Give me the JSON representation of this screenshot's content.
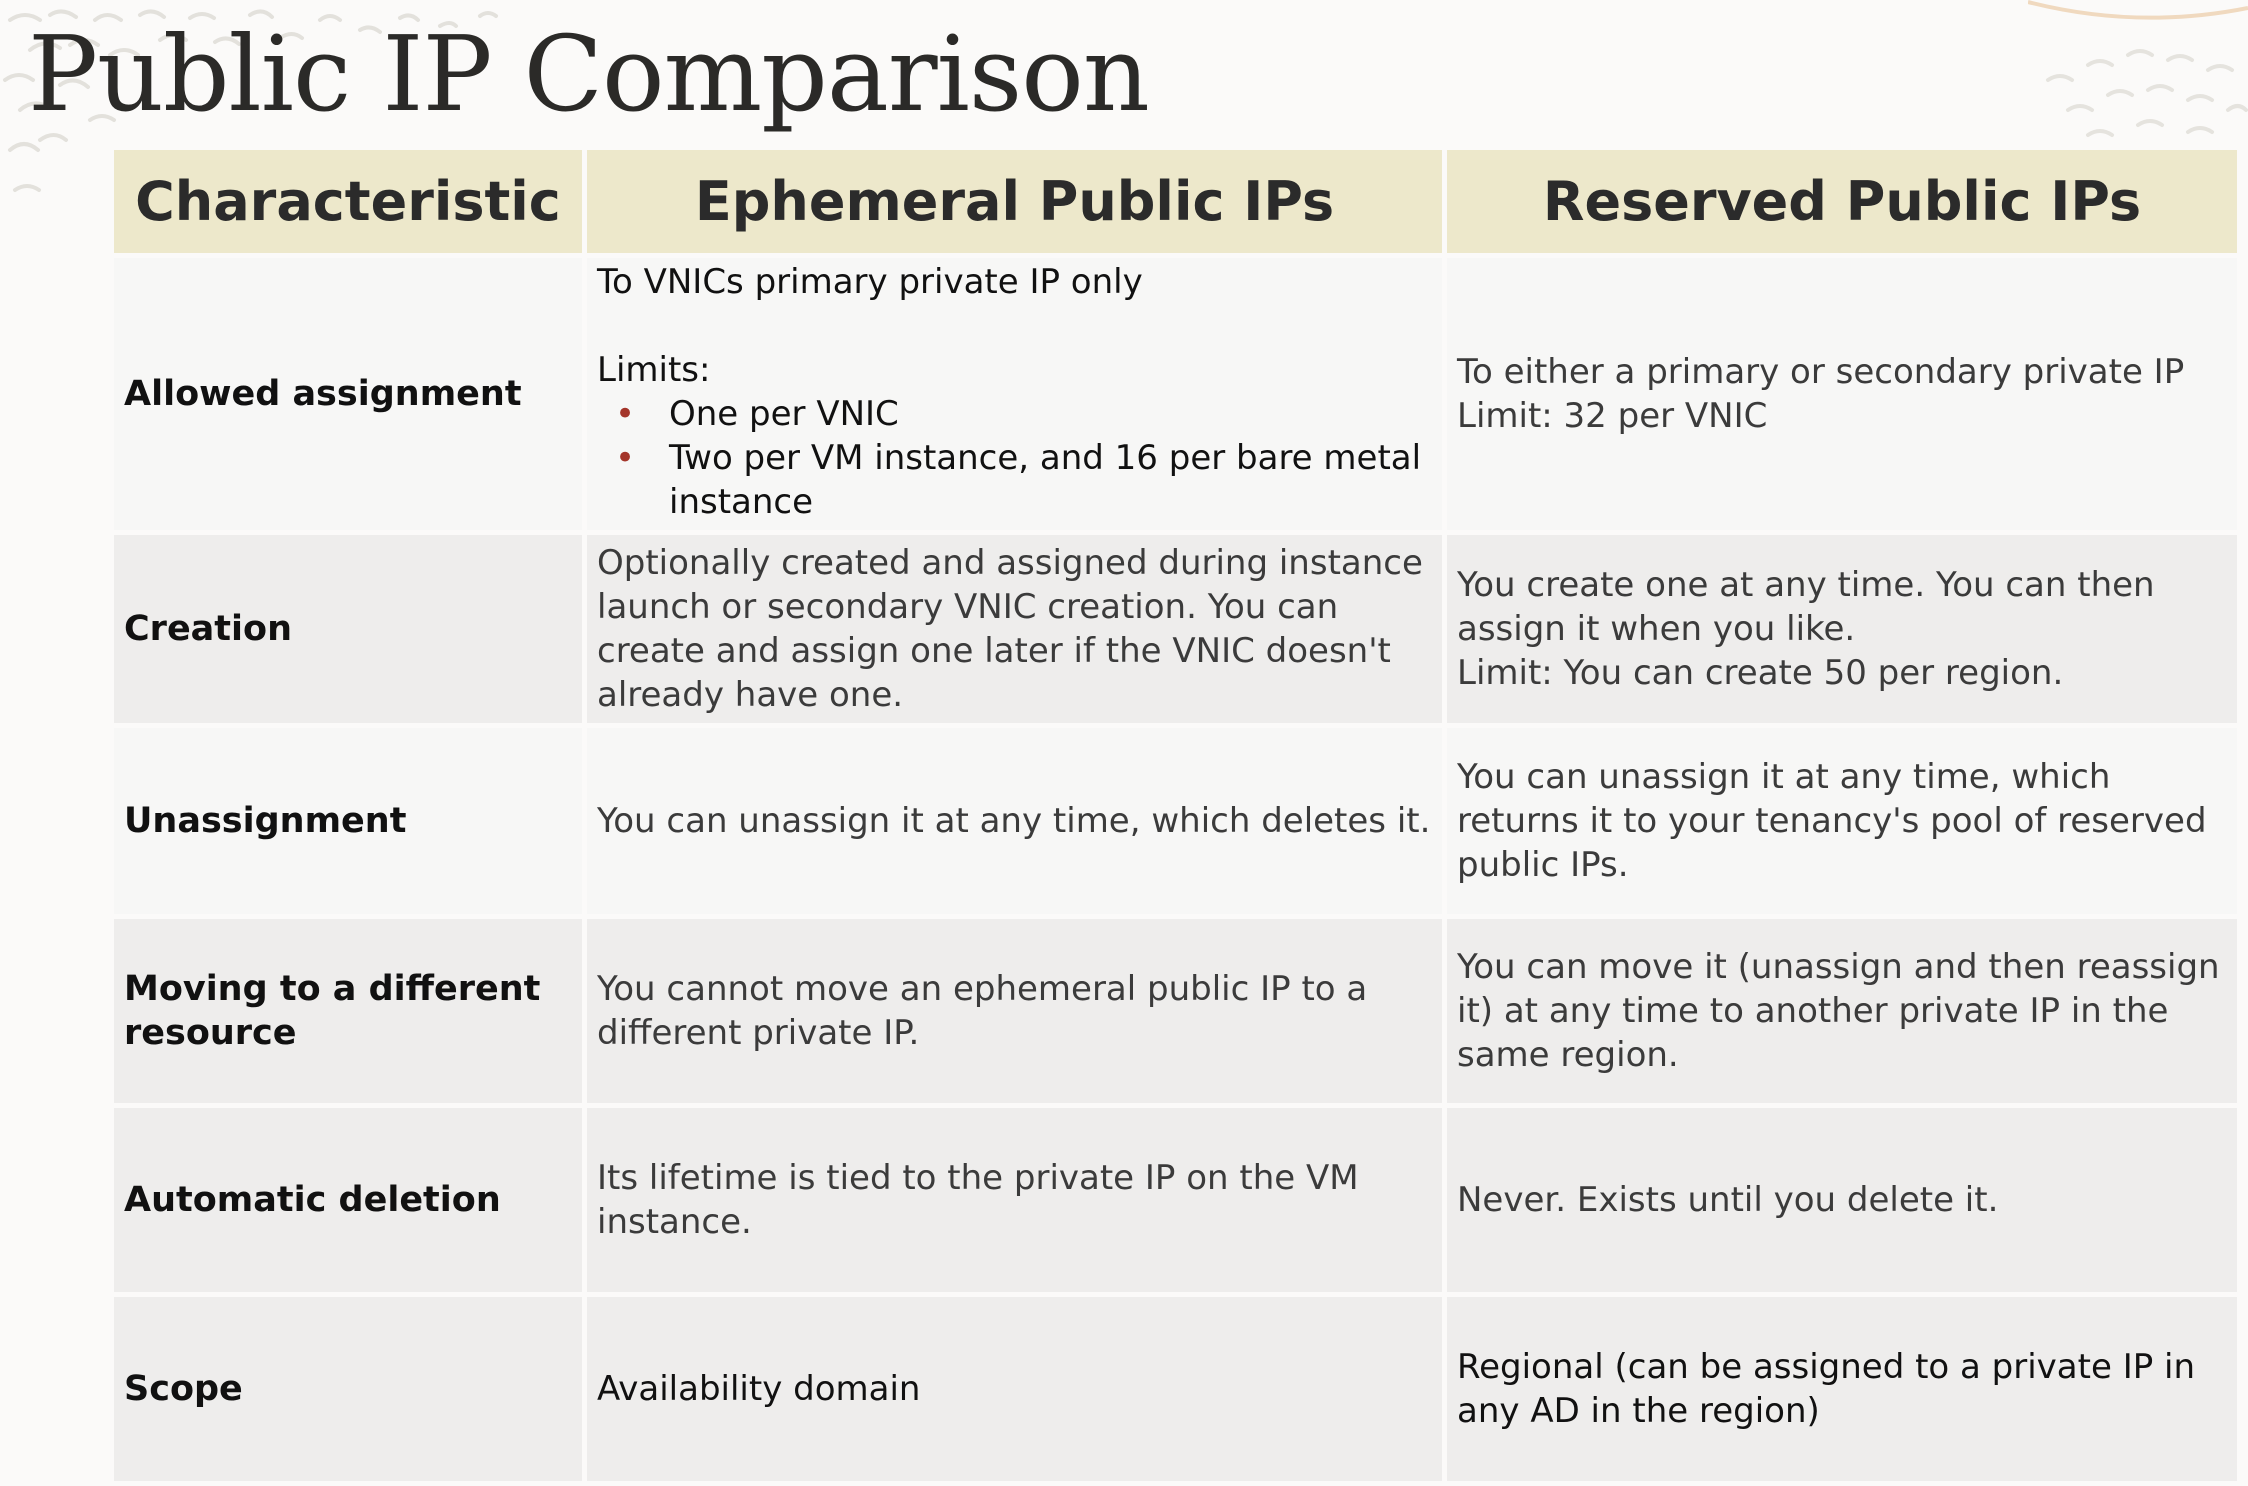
{
  "title": "Public IP Comparison",
  "table": {
    "headers": {
      "characteristic": "Characteristic",
      "ephemeral": "Ephemeral Public IPs",
      "reserved": "Reserved Public IPs"
    },
    "rows": [
      {
        "characteristic": "Allowed assignment",
        "ephemeral_intro": "To VNICs primary private IP only",
        "ephemeral_limits_label": "Limits:",
        "ephemeral_limits": [
          "One per VNIC",
          "Two per VM instance, and 16 per bare metal instance"
        ],
        "reserved_lines": [
          "To either a primary or secondary private IP",
          "Limit: 32 per VNIC"
        ]
      },
      {
        "characteristic": "Creation",
        "ephemeral": "Optionally created and assigned during instance launch or secondary VNIC creation. You can create and assign one later if the VNIC doesn't already have one.",
        "reserved_lines": [
          "You create one at any time. You can then assign it when you like.",
          "Limit: You can create 50 per region."
        ]
      },
      {
        "characteristic": "Unassignment",
        "ephemeral": "You can unassign it at any time, which deletes it.",
        "reserved": "You can unassign it at any time, which returns it to your tenancy's pool of reserved public IPs."
      },
      {
        "characteristic": "Moving to a different resource",
        "ephemeral": "You cannot move an ephemeral public IP to a different private IP.",
        "reserved": "You can move it (unassign and then reassign it) at any time to another private IP in the same region."
      },
      {
        "characteristic": "Automatic deletion",
        "ephemeral": "Its lifetime is tied to the private IP on the VM instance.",
        "reserved": "Never. Exists until you delete it."
      },
      {
        "characteristic": "Scope",
        "ephemeral": "Availability domain",
        "reserved": "Regional (can be assigned to a private IP in any AD in the region)"
      }
    ]
  }
}
